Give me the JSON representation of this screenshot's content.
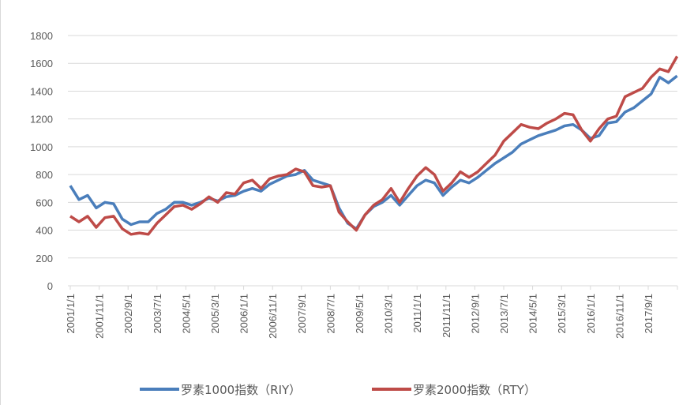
{
  "chart_data": {
    "type": "line",
    "title": "",
    "xlabel": "",
    "ylabel": "",
    "ylim": [
      0,
      1800
    ],
    "yticks": [
      0,
      200,
      400,
      600,
      800,
      1000,
      1200,
      1400,
      1600,
      1800
    ],
    "grid": true,
    "legend_position": "bottom",
    "x_tick_labels": [
      "2001/1/1",
      "2001/11/1",
      "2002/9/1",
      "2003/7/1",
      "2004/5/1",
      "2005/3/1",
      "2006/1/1",
      "2006/11/1",
      "2007/9/1",
      "2008/7/1",
      "2009/5/1",
      "2010/3/1",
      "2011/1/1",
      "2011/11/1",
      "2012/9/1",
      "2013/7/1",
      "2014/5/1",
      "2015/3/1",
      "2016/1/1",
      "2016/11/1",
      "2017/9/1"
    ],
    "x": [
      "2001/1",
      "2001/4",
      "2001/7",
      "2001/10",
      "2002/1",
      "2002/4",
      "2002/7",
      "2002/10",
      "2003/1",
      "2003/4",
      "2003/7",
      "2003/10",
      "2004/1",
      "2004/4",
      "2004/7",
      "2004/10",
      "2005/1",
      "2005/4",
      "2005/7",
      "2005/10",
      "2006/1",
      "2006/4",
      "2006/7",
      "2006/10",
      "2007/1",
      "2007/4",
      "2007/7",
      "2007/10",
      "2008/1",
      "2008/4",
      "2008/7",
      "2008/10",
      "2009/1",
      "2009/4",
      "2009/7",
      "2009/10",
      "2010/1",
      "2010/4",
      "2010/7",
      "2010/10",
      "2011/1",
      "2011/4",
      "2011/7",
      "2011/10",
      "2012/1",
      "2012/4",
      "2012/7",
      "2012/10",
      "2013/1",
      "2013/4",
      "2013/7",
      "2013/10",
      "2014/1",
      "2014/4",
      "2014/7",
      "2014/10",
      "2015/1",
      "2015/4",
      "2015/7",
      "2015/10",
      "2016/1",
      "2016/4",
      "2016/7",
      "2016/10",
      "2017/1",
      "2017/4",
      "2017/7",
      "2017/10",
      "2018/1",
      "2018/4",
      "2018/7"
    ],
    "series": [
      {
        "name": "罗素1000指数（RIY）",
        "color": "#4a7ebb",
        "values": [
          720,
          620,
          650,
          560,
          600,
          590,
          480,
          440,
          460,
          460,
          520,
          550,
          600,
          600,
          580,
          600,
          630,
          610,
          640,
          650,
          680,
          700,
          680,
          730,
          760,
          790,
          800,
          830,
          760,
          740,
          720,
          560,
          450,
          410,
          510,
          570,
          600,
          650,
          580,
          650,
          720,
          760,
          740,
          650,
          710,
          760,
          740,
          780,
          830,
          880,
          920,
          960,
          1020,
          1050,
          1080,
          1100,
          1120,
          1150,
          1160,
          1120,
          1060,
          1080,
          1170,
          1180,
          1250,
          1280,
          1330,
          1380,
          1500,
          1460,
          1510
        ]
      },
      {
        "name": "罗素2000指数（RTY）",
        "color": "#be4b48",
        "values": [
          500,
          460,
          500,
          420,
          490,
          500,
          410,
          370,
          380,
          370,
          450,
          510,
          570,
          580,
          550,
          590,
          640,
          600,
          670,
          660,
          740,
          760,
          700,
          770,
          790,
          800,
          840,
          820,
          720,
          710,
          720,
          530,
          460,
          400,
          510,
          580,
          620,
          700,
          600,
          700,
          790,
          850,
          800,
          680,
          740,
          820,
          780,
          820,
          880,
          940,
          1040,
          1100,
          1160,
          1140,
          1130,
          1170,
          1200,
          1240,
          1230,
          1120,
          1040,
          1130,
          1200,
          1220,
          1360,
          1390,
          1420,
          1500,
          1560,
          1540,
          1650
        ]
      }
    ]
  }
}
